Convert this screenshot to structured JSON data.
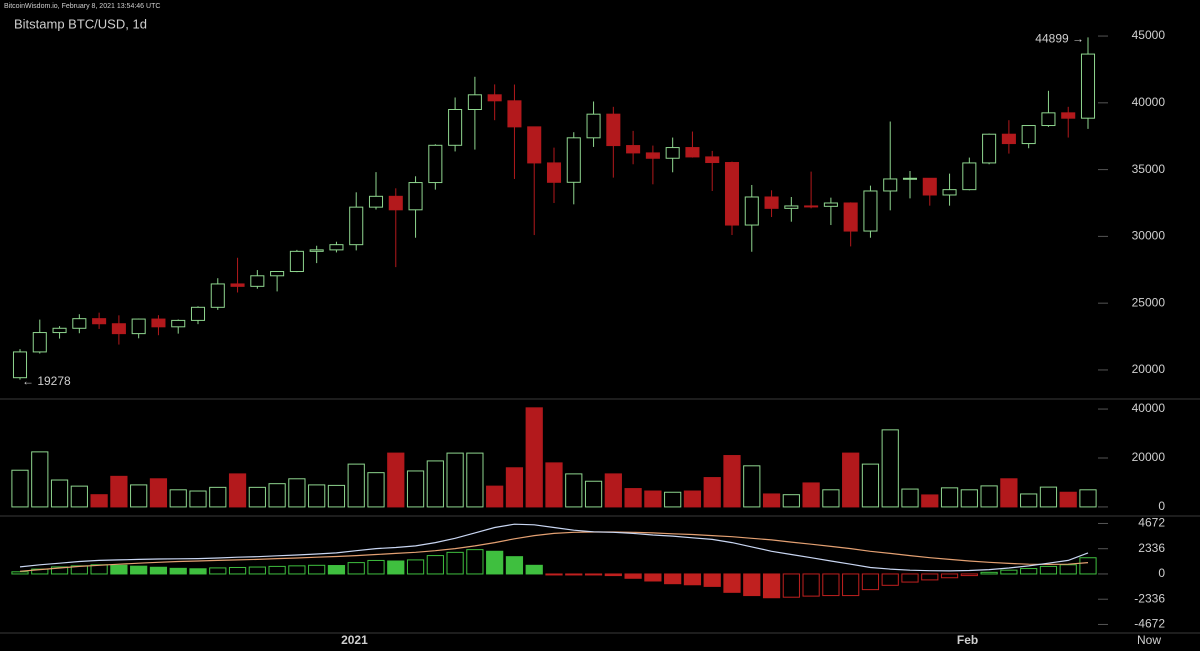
{
  "header": "BitcoinWisdom.io, February 8, 2021 13:54:46 UTC",
  "chart_data": [
    {
      "type": "candlestick",
      "title": "Bitstamp BTC/USD, 1d",
      "categories": [
        null,
        null,
        null,
        null,
        null,
        null,
        null,
        null,
        null,
        null,
        null,
        null,
        null,
        null,
        null,
        null,
        "2021",
        null,
        null,
        null,
        null,
        null,
        null,
        null,
        null,
        null,
        null,
        null,
        null,
        null,
        null,
        null,
        null,
        null,
        null,
        null,
        null,
        null,
        null,
        null,
        null,
        null,
        null,
        null,
        null,
        null,
        null,
        "Feb",
        null,
        null,
        null,
        null,
        null,
        null,
        null
      ],
      "x_end_label": "Now",
      "open": [
        19420,
        21350,
        22800,
        23120,
        23840,
        23460,
        22720,
        23810,
        23230,
        23710,
        24690,
        26440,
        26260,
        27050,
        27370,
        28880,
        28990,
        29380,
        32190,
        33000,
        31990,
        34030,
        36820,
        39500,
        40600,
        40150,
        38200,
        35500,
        34050,
        37380,
        39150,
        36800,
        36250,
        35850,
        36650,
        35950,
        35530,
        30850,
        32950,
        32100,
        32280,
        32250,
        32500,
        30400,
        33400,
        34300,
        34350,
        33100,
        33500,
        35500,
        37650,
        36950,
        38300,
        39250,
        38850
      ],
      "high": [
        21560,
        23770,
        23280,
        24170,
        24290,
        24090,
        23850,
        24100,
        23780,
        24770,
        26870,
        28400,
        27480,
        27370,
        28990,
        29300,
        29600,
        33300,
        34810,
        33600,
        34500,
        36900,
        40400,
        41950,
        41380,
        41370,
        38200,
        36650,
        37800,
        40100,
        39700,
        37900,
        36800,
        37400,
        37850,
        36400,
        35600,
        33850,
        33450,
        32950,
        34850,
        32900,
        32550,
        33800,
        38600,
        34900,
        34300,
        34700,
        35900,
        37700,
        38700,
        38300,
        40900,
        39700,
        44899
      ],
      "low": [
        19278,
        21230,
        22350,
        22750,
        23070,
        21900,
        22370,
        22600,
        22720,
        23430,
        24500,
        25800,
        26080,
        25880,
        27320,
        28000,
        28800,
        28950,
        32010,
        27700,
        29900,
        33500,
        36360,
        36500,
        38700,
        34300,
        30100,
        32500,
        32400,
        36700,
        34400,
        35400,
        33900,
        34800,
        35900,
        33400,
        30100,
        28850,
        31450,
        31100,
        32100,
        30850,
        29250,
        29900,
        31950,
        32850,
        32300,
        32300,
        33450,
        35400,
        36200,
        36600,
        38200,
        37400,
        38050
      ],
      "close": [
        21350,
        22800,
        23120,
        23840,
        23460,
        22720,
        23810,
        23230,
        23710,
        24690,
        26440,
        26260,
        27050,
        27370,
        28880,
        28990,
        29380,
        32190,
        33000,
        31990,
        34030,
        36820,
        39500,
        40600,
        40150,
        38200,
        35500,
        34050,
        37380,
        39150,
        36800,
        36250,
        35850,
        36650,
        35950,
        35530,
        30850,
        32950,
        32100,
        32280,
        32250,
        32500,
        30400,
        33400,
        34300,
        34350,
        33100,
        33500,
        35500,
        37650,
        36950,
        38300,
        39250,
        38850,
        43650
      ],
      "up_color": "#8fd68f",
      "down_color": "#b3191c",
      "max_label": "44899 →",
      "min_label": "← 19278",
      "ylim": [
        17900,
        46800
      ],
      "yticks": [
        20000,
        25000,
        30000,
        35000,
        40000,
        45000
      ]
    },
    {
      "type": "volume",
      "values": [
        15000,
        22500,
        11000,
        8500,
        5000,
        12500,
        9000,
        11500,
        7000,
        6500,
        8000,
        13500,
        8000,
        9500,
        11500,
        9000,
        8800,
        17500,
        14000,
        22000,
        14700,
        18800,
        22000,
        22000,
        8500,
        16000,
        40500,
        18000,
        13500,
        10500,
        13500,
        7500,
        6500,
        6000,
        6500,
        12000,
        21000,
        16800,
        5300,
        5000,
        9800,
        7000,
        22000,
        17500,
        31500,
        7300,
        4900,
        7800,
        7000,
        8600,
        11500,
        5300,
        8100,
        6000,
        7000
      ],
      "up_color": "#8fd68f",
      "down_color": "#b3191c",
      "ylim": [
        -3300,
        43700
      ],
      "yticks": [
        0,
        20000,
        40000
      ]
    },
    {
      "type": "macd",
      "histogram": [
        200,
        450,
        650,
        750,
        850,
        800,
        720,
        620,
        520,
        480,
        560,
        600,
        640,
        700,
        750,
        800,
        780,
        1050,
        1250,
        1200,
        1300,
        1700,
        2000,
        2250,
        2100,
        1600,
        800,
        -20,
        -40,
        -60,
        -150,
        -400,
        -650,
        -900,
        -1000,
        -1150,
        -1700,
        -2000,
        -2200,
        -2150,
        -2050,
        -2000,
        -2000,
        -1450,
        -1050,
        -750,
        -550,
        -350,
        -150,
        150,
        350,
        500,
        700,
        850,
        1500
      ],
      "dif": [
        650,
        850,
        1000,
        1150,
        1250,
        1300,
        1350,
        1380,
        1400,
        1420,
        1480,
        1550,
        1600,
        1680,
        1750,
        1850,
        1950,
        2150,
        2350,
        2450,
        2600,
        2900,
        3300,
        3800,
        4300,
        4600,
        4550,
        4300,
        4050,
        3900,
        3850,
        3750,
        3600,
        3500,
        3350,
        3200,
        2900,
        2500,
        2100,
        1800,
        1500,
        1200,
        900,
        600,
        450,
        350,
        300,
        280,
        320,
        400,
        550,
        750,
        1000,
        1250,
        1950
      ],
      "dea": [
        250,
        400,
        550,
        700,
        800,
        900,
        1000,
        1080,
        1150,
        1200,
        1250,
        1300,
        1350,
        1420,
        1480,
        1550,
        1620,
        1700,
        1800,
        1900,
        2000,
        2150,
        2350,
        2600,
        2900,
        3250,
        3550,
        3750,
        3850,
        3880,
        3880,
        3850,
        3800,
        3720,
        3650,
        3550,
        3450,
        3300,
        3150,
        2950,
        2750,
        2550,
        2350,
        2100,
        1900,
        1700,
        1500,
        1350,
        1200,
        1080,
        980,
        900,
        880,
        900,
        1050
      ],
      "up_color": "#3fbf3f",
      "down_color": "#c0201f",
      "dif_color": "#c9d6f2",
      "dea_color": "#e3a072",
      "ylim": [
        -5370,
        5270
      ],
      "yticks": [
        -4672,
        -2336,
        0,
        2336,
        4672
      ]
    }
  ]
}
